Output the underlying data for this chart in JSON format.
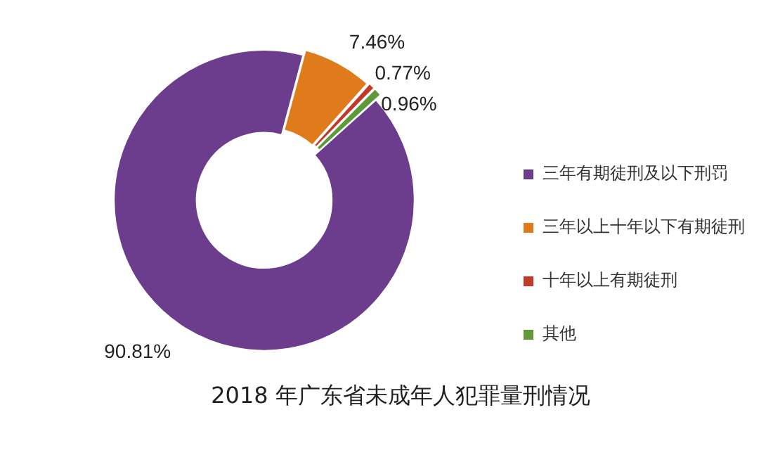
{
  "chart_data": {
    "type": "donut",
    "title": "2018 年广东省未成年人犯罪量刑情况",
    "categories": [
      "三年有期徒刑及以下刑罚",
      "三年以上十年以下有期徒刑",
      "十年以上有期徒刑",
      "其他"
    ],
    "values": [
      90.81,
      7.46,
      0.77,
      0.96
    ],
    "value_labels": [
      "90.81%",
      "7.46%",
      "0.77%",
      "0.96%"
    ],
    "colors": [
      "#6b3d8c",
      "#e07b1c",
      "#c0392b",
      "#5e9a3a"
    ],
    "legend": "right"
  }
}
